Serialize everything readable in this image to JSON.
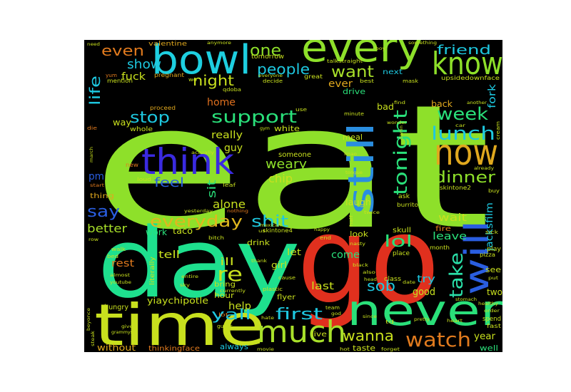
{
  "words": [
    {
      "text": "eat",
      "color": "#8ee02a"
    },
    {
      "text": "go",
      "color": "#e0301e"
    },
    {
      "text": "day",
      "color": "#1ee08e"
    },
    {
      "text": "time",
      "color": "#c8e01e"
    },
    {
      "text": "never",
      "color": "#2ae07a"
    },
    {
      "text": "bowl",
      "color": "#1ecfe0"
    },
    {
      "text": "every",
      "color": "#8ee02a"
    },
    {
      "text": "know",
      "color": "#8ee02a"
    },
    {
      "text": "now",
      "color": "#e0a81e"
    },
    {
      "text": "think",
      "color": "#3a2ae0"
    },
    {
      "text": "still",
      "color": "#2a8ee0"
    },
    {
      "text": "will",
      "color": "#2a5ee0"
    },
    {
      "text": "much",
      "color": "#a8e02a"
    },
    {
      "text": "watch",
      "color": "#e07a1e"
    },
    {
      "text": "tonight",
      "color": "#2ae07a"
    },
    {
      "text": "lunch",
      "color": "#1ec8e0"
    },
    {
      "text": "week",
      "color": "#2ae07a"
    },
    {
      "text": "dinner",
      "color": "#8ee02a"
    },
    {
      "text": "support",
      "color": "#2ae07a"
    },
    {
      "text": "everyday",
      "color": "#e0b81e"
    },
    {
      "text": "shit",
      "color": "#1ec8e0"
    },
    {
      "text": "take",
      "color": "#2ae0a8"
    },
    {
      "text": "sob",
      "color": "#1ec8e0"
    },
    {
      "text": "lol",
      "color": "#2ae07a"
    },
    {
      "text": "first",
      "color": "#1ec8e0"
    },
    {
      "text": "wanna",
      "color": "#c8e01e"
    },
    {
      "text": "yall",
      "color": "#1ec8e0"
    },
    {
      "text": "re",
      "color": "#c8e01e"
    },
    {
      "text": "people",
      "color": "#1ec8e0"
    },
    {
      "text": "want",
      "color": "#a8e02a"
    },
    {
      "text": "one",
      "color": "#8ee02a"
    },
    {
      "text": "even",
      "color": "#e07a1e"
    },
    {
      "text": "show",
      "color": "#1ec8e0"
    },
    {
      "text": "night",
      "color": "#c8e01e"
    },
    {
      "text": "stop",
      "color": "#1ec8e0"
    },
    {
      "text": "say",
      "color": "#2a5ee0"
    },
    {
      "text": "life",
      "color": "#1ec8e0"
    },
    {
      "text": "friend",
      "color": "#1ec8e0"
    },
    {
      "text": "fork",
      "color": "#1ec8e0"
    },
    {
      "text": "weary",
      "color": "#8ee02a"
    },
    {
      "text": "chip",
      "color": "#c8e01e"
    },
    {
      "text": "feel",
      "color": "#2a5ee0"
    },
    {
      "text": "sit",
      "color": "#2ae07a"
    },
    {
      "text": "alone",
      "color": "#c8e01e"
    },
    {
      "text": "better",
      "color": "#a8e02a"
    },
    {
      "text": "fuck",
      "color": "#c8e01e"
    },
    {
      "text": "really",
      "color": "#c8e01e"
    },
    {
      "text": "guy",
      "color": "#c8e01e"
    },
    {
      "text": "home",
      "color": "#e0701e"
    },
    {
      "text": "tell",
      "color": "#c8e01e"
    },
    {
      "text": "help",
      "color": "#c8e01e"
    },
    {
      "text": "ill",
      "color": "#c8e01e"
    },
    {
      "text": "rest",
      "color": "#e07a1e"
    },
    {
      "text": "come",
      "color": "#2ae07a"
    },
    {
      "text": "good",
      "color": "#c8e01e"
    },
    {
      "text": "try",
      "color": "#1ec8e0"
    },
    {
      "text": "wait",
      "color": "#c8e01e"
    },
    {
      "text": "leave",
      "color": "#2ae07a"
    },
    {
      "text": "last",
      "color": "#c8e01e"
    },
    {
      "text": "laugh",
      "color": "#c8e01e"
    },
    {
      "text": "back",
      "color": "#e0a81e"
    },
    {
      "text": "year",
      "color": "#c8e01e"
    },
    {
      "text": "work",
      "color": "#2ae07a"
    },
    {
      "text": "taco",
      "color": "#c8e01e"
    },
    {
      "text": "yiaychipotle",
      "color": "#c8e01e"
    },
    {
      "text": "without",
      "color": "#e0a81e"
    },
    {
      "text": "thinkingface",
      "color": "#e07a1e"
    },
    {
      "text": "always",
      "color": "#1ec8e0"
    },
    {
      "text": "taste",
      "color": "#c8e01e"
    },
    {
      "text": "well",
      "color": "#2ae07a"
    },
    {
      "text": "jacksfilm",
      "color": "#1ec8e0"
    },
    {
      "text": "two",
      "color": "#c8e01e"
    },
    {
      "text": "hour",
      "color": "#c8e01e"
    },
    {
      "text": "girl",
      "color": "#c8e01e"
    },
    {
      "text": "let",
      "color": "#c8e01e"
    },
    {
      "text": "bad",
      "color": "#c8e01e"
    },
    {
      "text": "drive",
      "color": "#2ae07a"
    },
    {
      "text": "meal",
      "color": "#c8e01e"
    },
    {
      "text": "ever",
      "color": "#e0a81e"
    },
    {
      "text": "way",
      "color": "#c8e01e"
    },
    {
      "text": "pm",
      "color": "#2a5ee0"
    },
    {
      "text": "valentine",
      "color": "#e0a81e"
    },
    {
      "text": "white",
      "color": "#c8e01e"
    },
    {
      "text": "someone",
      "color": "#c8e01e"
    },
    {
      "text": "look",
      "color": "#c8e01e"
    },
    {
      "text": "skull",
      "color": "#c8e01e"
    },
    {
      "text": "fire",
      "color": "#e07a1e"
    },
    {
      "text": "drink",
      "color": "#c8e01e"
    },
    {
      "text": "see",
      "color": "#c8e01e"
    },
    {
      "text": "bring",
      "color": "#c8e01e"
    },
    {
      "text": "thing",
      "color": "#e0a81e"
    },
    {
      "text": "whole",
      "color": "#c8e01e"
    },
    {
      "text": "hungry",
      "color": "#c8e01e"
    },
    {
      "text": "flyer",
      "color": "#c8e01e"
    },
    {
      "text": "live",
      "color": "#c8e01e"
    },
    {
      "text": "next",
      "color": "#1ec8e0"
    },
    {
      "text": "tomorrow",
      "color": "#c8e01e"
    },
    {
      "text": "mention",
      "color": "#c8e01e"
    },
    {
      "text": "pregnant",
      "color": "#e0a81e"
    },
    {
      "text": "skintone4",
      "color": "#c8e01e"
    },
    {
      "text": "skintone2",
      "color": "#c8e01e"
    },
    {
      "text": "literally",
      "color": "#c8e01e"
    },
    {
      "text": "proceed",
      "color": "#e0a81e"
    },
    {
      "text": "ask",
      "color": "#c8e01e"
    },
    {
      "text": "burrito",
      "color": "#c8e01e"
    },
    {
      "text": "class",
      "color": "#c8e01e"
    },
    {
      "text": "place",
      "color": "#c8e01e"
    },
    {
      "text": "month",
      "color": "#c8e01e"
    },
    {
      "text": "pizza",
      "color": "#c8e01e"
    },
    {
      "text": "play",
      "color": "#c8e01e"
    },
    {
      "text": "spend",
      "color": "#c8e01e"
    },
    {
      "text": "fast",
      "color": "#c8e01e"
    },
    {
      "text": "upsidedownface",
      "color": "#c8e01e"
    },
    {
      "text": "great",
      "color": "#c8e01e"
    },
    {
      "text": "talkstraight",
      "color": "#c8e01e"
    },
    {
      "text": "everyone",
      "color": "#c8e01e"
    },
    {
      "text": "decide",
      "color": "#c8e01e"
    },
    {
      "text": "best",
      "color": "#c8e01e"
    },
    {
      "text": "mask",
      "color": "#c8e01e"
    },
    {
      "text": "qdoba",
      "color": "#c8e01e"
    },
    {
      "text": "minute",
      "color": "#c8e01e"
    },
    {
      "text": "use",
      "color": "#c8e01e"
    },
    {
      "text": "yum",
      "color": "#e07a1e"
    },
    {
      "text": "die",
      "color": "#e07a1e"
    },
    {
      "text": "anymore",
      "color": "#c8e01e"
    },
    {
      "text": "need",
      "color": "#c8e01e"
    },
    {
      "text": "boy",
      "color": "#c8e01e"
    },
    {
      "text": "something",
      "color": "#c8e01e"
    },
    {
      "text": "new",
      "color": "#e07a1e"
    },
    {
      "text": "loud",
      "color": "#c8e01e"
    },
    {
      "text": "leaf",
      "color": "#c8e01e"
    },
    {
      "text": "actually",
      "color": "#c8e01e"
    },
    {
      "text": "yesterday",
      "color": "#c8e01e"
    },
    {
      "text": "nothing",
      "color": "#e07a1e"
    },
    {
      "text": "mexican",
      "color": "#c8e01e"
    },
    {
      "text": "bitch",
      "color": "#c8e01e"
    },
    {
      "text": "walk",
      "color": "#c8e01e"
    },
    {
      "text": "bed",
      "color": "#c8e01e"
    },
    {
      "text": "almost",
      "color": "#c8e01e"
    },
    {
      "text": "youtube",
      "color": "#c8e01e"
    },
    {
      "text": "beyonce",
      "color": "#c8e01e"
    },
    {
      "text": "give",
      "color": "#c8e01e"
    },
    {
      "text": "grammys",
      "color": "#c8e01e"
    },
    {
      "text": "steak",
      "color": "#c8e01e"
    },
    {
      "text": "guess",
      "color": "#c8e01e"
    },
    {
      "text": "lot",
      "color": "#e07a1e"
    },
    {
      "text": "movie",
      "color": "#c8e01e"
    },
    {
      "text": "end",
      "color": "#c8e01e"
    },
    {
      "text": "happy",
      "color": "#c8e01e"
    },
    {
      "text": "nasty",
      "color": "#c8e01e"
    },
    {
      "text": "black",
      "color": "#c8e01e"
    },
    {
      "text": "also",
      "color": "#c8e01e"
    },
    {
      "text": "head",
      "color": "#c8e01e"
    },
    {
      "text": "date",
      "color": "#c8e01e"
    },
    {
      "text": "team",
      "color": "#c8e01e"
    },
    {
      "text": "god",
      "color": "#c8e01e"
    },
    {
      "text": "hot",
      "color": "#c8e01e"
    },
    {
      "text": "forget",
      "color": "#c8e01e"
    },
    {
      "text": "td",
      "color": "#c8e01e"
    },
    {
      "text": "since",
      "color": "#c8e01e"
    },
    {
      "text": "pretty",
      "color": "#c8e01e"
    },
    {
      "text": "heart",
      "color": "#c8e01e"
    },
    {
      "text": "stomach",
      "color": "#c8e01e"
    },
    {
      "text": "healthy",
      "color": "#c8e01e"
    },
    {
      "text": "order",
      "color": "#c8e01e"
    },
    {
      "text": "cream",
      "color": "#c8e01e"
    },
    {
      "text": "another",
      "color": "#c8e01e"
    },
    {
      "text": "car",
      "color": "#c8e01e"
    },
    {
      "text": "damn",
      "color": "#c8e01e"
    },
    {
      "text": "wonder",
      "color": "#c8e01e"
    },
    {
      "text": "find",
      "color": "#c8e01e"
    },
    {
      "text": "lmao",
      "color": "#c8e01e"
    },
    {
      "text": "tongue",
      "color": "#c8e01e"
    },
    {
      "text": "twice",
      "color": "#c8e01e"
    },
    {
      "text": "put",
      "color": "#c8e01e"
    },
    {
      "text": "sick",
      "color": "#c8e01e"
    },
    {
      "text": "cause",
      "color": "#c8e01e"
    },
    {
      "text": "plastic",
      "color": "#c8e01e"
    },
    {
      "text": "currently",
      "color": "#c8e01e"
    },
    {
      "text": "thank",
      "color": "#c8e01e"
    },
    {
      "text": "hate",
      "color": "#c8e01e"
    },
    {
      "text": "buy",
      "color": "#c8e01e"
    },
    {
      "text": "row",
      "color": "#c8e01e"
    },
    {
      "text": "wo",
      "color": "#c8e01e"
    },
    {
      "text": "gym",
      "color": "#c8e01e"
    },
    {
      "text": "march",
      "color": "#c8e01e"
    },
    {
      "text": "start",
      "color": "#e07a1e"
    },
    {
      "text": "entire",
      "color": "#c8e01e"
    },
    {
      "text": "sky",
      "color": "#c8e01e"
    },
    {
      "text": "already",
      "color": "#c8e01e"
    },
    {
      "text": "half",
      "color": "#c8e01e"
    },
    {
      "text": "us",
      "color": "#c8e01e"
    }
  ]
}
